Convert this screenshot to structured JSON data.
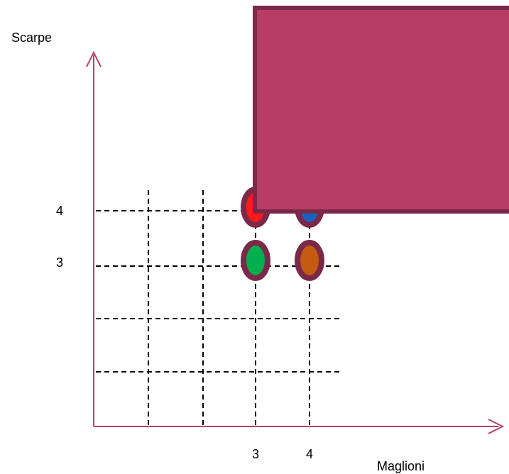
{
  "axes": {
    "y_title": "Scarpe",
    "x_title": "Maglioni",
    "y_tick_labels": [
      "4",
      "3"
    ],
    "x_tick_labels": [
      "3",
      "4"
    ],
    "axis_color": "#b5436b",
    "grid_color": "#000000",
    "grid_style": "dashed"
  },
  "chart_data": {
    "type": "scatter",
    "title": "",
    "xlabel": "Maglioni",
    "ylabel": "Scarpe",
    "x_ticks": [
      3,
      4
    ],
    "y_ticks": [
      3,
      4
    ],
    "points": [
      {
        "x": 3,
        "y": 4,
        "fill": "#ff1a1a",
        "outline": "#7b2948",
        "partly_covered": true
      },
      {
        "x": 4,
        "y": 4,
        "fill": "#1565c0",
        "outline": "#7b2948",
        "partly_covered": true
      },
      {
        "x": 3,
        "y": 3,
        "fill": "#00b050",
        "outline": "#7b2948"
      },
      {
        "x": 4,
        "y": 3,
        "fill": "#c55a11",
        "outline": "#7b2948"
      }
    ]
  },
  "overlay": {
    "fill": "#b83d66",
    "border": "#7b2948"
  }
}
